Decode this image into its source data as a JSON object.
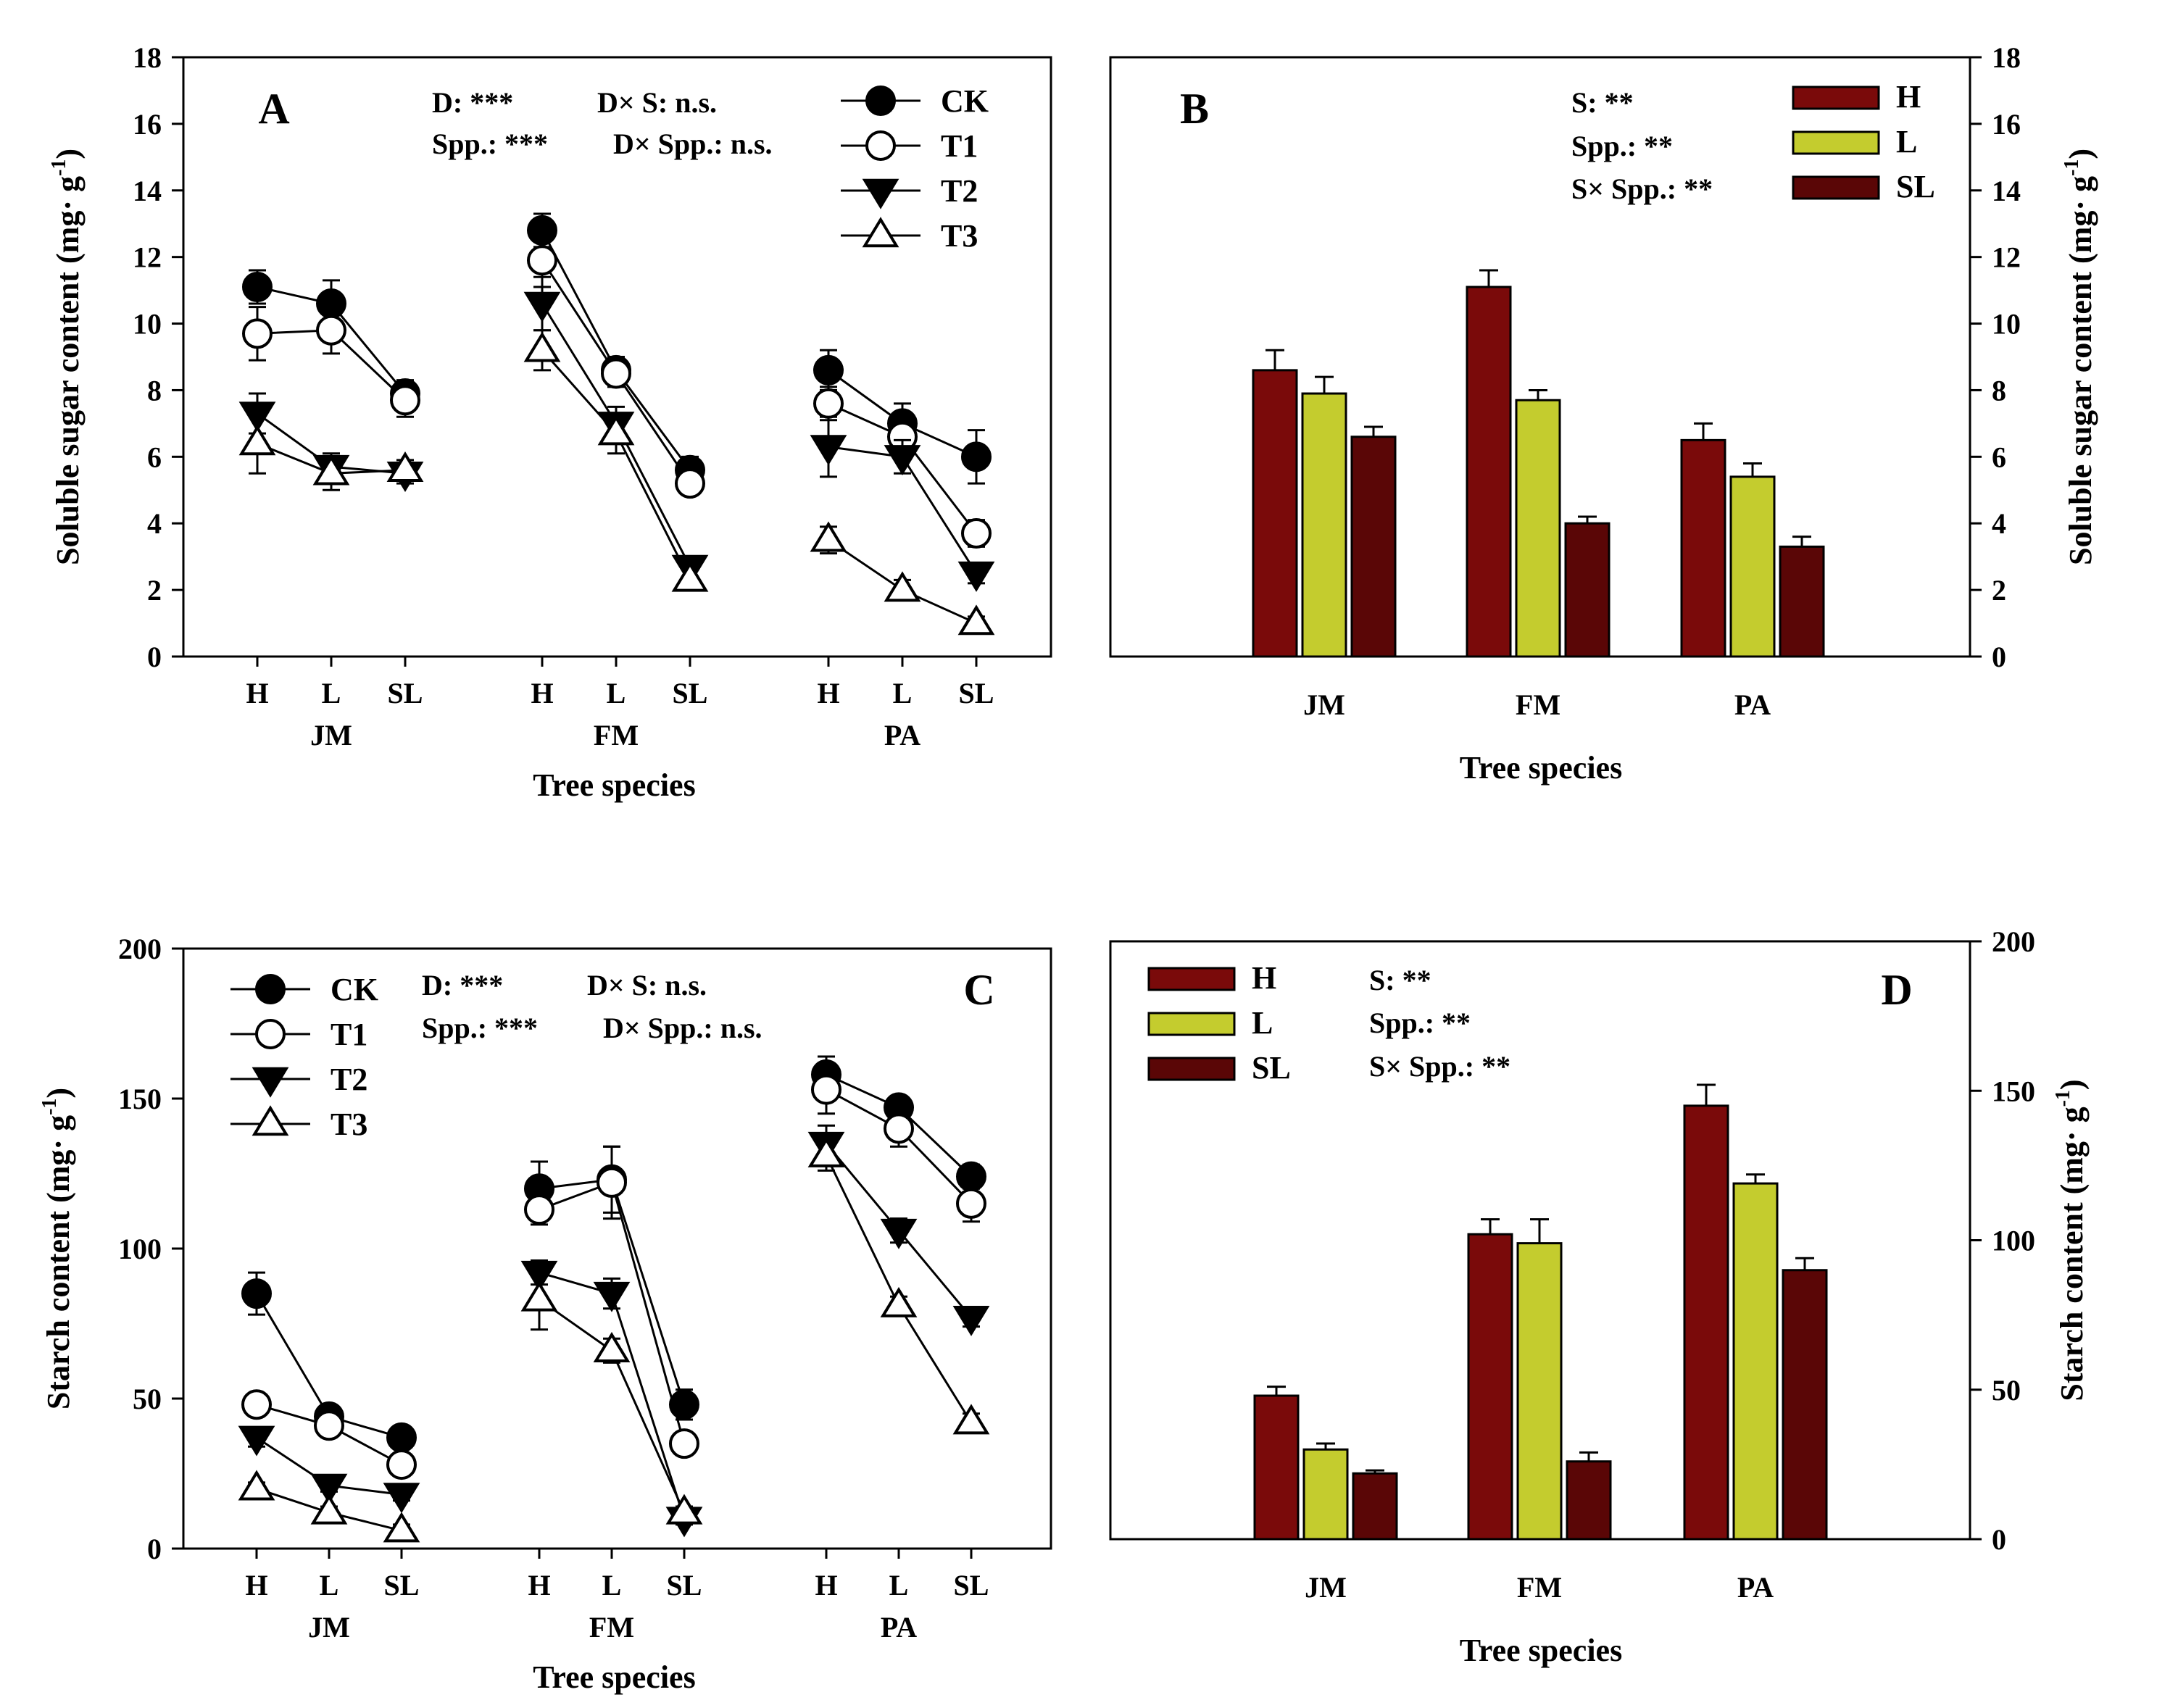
{
  "colors": {
    "H": "#7a0a0a",
    "L": "#c4cc2e",
    "SL": "#5a0606",
    "axis": "#000000"
  },
  "chart_data": [
    {
      "panel": "A",
      "type": "line",
      "ylabel": "Soluble sugar content (mg· g-1)",
      "ylabel_main": "Soluble sugar content (mg· g",
      "ylabel_sup": "-1",
      "ylabel_end": ")",
      "xlabel": "Tree species",
      "ylim": [
        0,
        18
      ],
      "yticks": [
        "0",
        "2",
        "4",
        "6",
        "8",
        "10",
        "12",
        "14",
        "16",
        "18"
      ],
      "groups": [
        "JM",
        "FM",
        "PA"
      ],
      "categories": [
        "H",
        "L",
        "SL"
      ],
      "stats": [
        "D: ***",
        "D× S: n.s.",
        "Spp.: ***",
        "D× Spp.: n.s."
      ],
      "legend": [
        "CK",
        "T1",
        "T2",
        "T3"
      ],
      "series": [
        {
          "name": "CK",
          "marker": "circle-filled",
          "values": [
            [
              11.1,
              10.6,
              7.9
            ],
            [
              12.8,
              8.6,
              5.6
            ],
            [
              8.6,
              7.0,
              6.0
            ]
          ],
          "errors": [
            [
              0.5,
              0.7,
              0.4
            ],
            [
              0.5,
              0.4,
              0.4
            ],
            [
              0.6,
              0.6,
              0.8
            ]
          ]
        },
        {
          "name": "T1",
          "marker": "circle-open",
          "values": [
            [
              9.7,
              9.8,
              7.7
            ],
            [
              11.9,
              8.5,
              5.2
            ],
            [
              7.6,
              6.6,
              3.7
            ]
          ],
          "errors": [
            [
              0.8,
              0.7,
              0.5
            ],
            [
              0.8,
              0.4,
              0.3
            ],
            [
              0.5,
              0.5,
              0.4
            ]
          ]
        },
        {
          "name": "T2",
          "marker": "triangle-down-filled",
          "values": [
            [
              7.3,
              5.7,
              5.5
            ],
            [
              10.6,
              7.0,
              2.7
            ],
            [
              6.3,
              6.0,
              2.5
            ]
          ],
          "errors": [
            [
              0.6,
              0.4,
              0.3
            ],
            [
              0.8,
              0.5,
              0.3
            ],
            [
              0.9,
              0.5,
              0.3
            ]
          ]
        },
        {
          "name": "T3",
          "marker": "triangle-up-open",
          "values": [
            [
              6.4,
              5.5,
              5.6
            ],
            [
              9.2,
              6.7,
              2.3
            ],
            [
              3.5,
              2.0,
              1.0
            ]
          ],
          "errors": [
            [
              0.9,
              0.5,
              0.3
            ],
            [
              0.6,
              0.6,
              0.3
            ],
            [
              0.4,
              0.3,
              0.2
            ]
          ]
        }
      ]
    },
    {
      "panel": "B",
      "type": "bar",
      "ylabel": "Soluble sugar content (mg· g-1)",
      "ylabel_main": "Soluble sugar content (mg· g",
      "ylabel_sup": "-1",
      "ylabel_end": ")",
      "xlabel": "Tree species",
      "ylim": [
        0,
        18
      ],
      "yticks": [
        "0",
        "2",
        "4",
        "6",
        "8",
        "10",
        "12",
        "14",
        "16",
        "18"
      ],
      "categories": [
        "JM",
        "FM",
        "PA"
      ],
      "stats": [
        "S: **",
        "Spp.: **",
        "S× Spp.: **"
      ],
      "legend": [
        "H",
        "L",
        "SL"
      ],
      "series": [
        {
          "name": "H",
          "values": [
            8.6,
            11.1,
            6.5
          ],
          "errors": [
            0.6,
            0.5,
            0.5
          ]
        },
        {
          "name": "L",
          "values": [
            7.9,
            7.7,
            5.4
          ],
          "errors": [
            0.5,
            0.3,
            0.4
          ]
        },
        {
          "name": "SL",
          "values": [
            6.6,
            4.0,
            3.3
          ],
          "errors": [
            0.3,
            0.2,
            0.3
          ]
        }
      ]
    },
    {
      "panel": "C",
      "type": "line",
      "ylabel": "Starch content (mg· g-1)",
      "ylabel_main": "Starch content (mg· g",
      "ylabel_sup": "-1",
      "ylabel_end": ")",
      "xlabel": "Tree species",
      "ylim": [
        0,
        200
      ],
      "yticks": [
        "0",
        "50",
        "100",
        "150",
        "200"
      ],
      "groups": [
        "JM",
        "FM",
        "PA"
      ],
      "categories": [
        "H",
        "L",
        "SL"
      ],
      "stats": [
        "D: ***",
        "D× S: n.s.",
        "Spp.: ***",
        "D× Spp.: n.s."
      ],
      "legend": [
        "CK",
        "T1",
        "T2",
        "T3"
      ],
      "series": [
        {
          "name": "CK",
          "marker": "circle-filled",
          "values": [
            [
              85,
              44,
              37
            ],
            [
              120,
              123,
              48
            ],
            [
              158,
              147,
              124
            ]
          ],
          "errors": [
            [
              7,
              3,
              3
            ],
            [
              9,
              11,
              5
            ],
            [
              6,
              3,
              4
            ]
          ]
        },
        {
          "name": "T1",
          "marker": "circle-open",
          "values": [
            [
              48,
              41,
              28
            ],
            [
              113,
              122,
              35
            ],
            [
              153,
              140,
              115
            ]
          ],
          "errors": [
            [
              3,
              3,
              3
            ],
            [
              5,
              12,
              3
            ],
            [
              8,
              6,
              6
            ]
          ]
        },
        {
          "name": "T2",
          "marker": "triangle-down-filled",
          "values": [
            [
              37,
              21,
              18
            ],
            [
              92,
              85,
              10
            ],
            [
              135,
              106,
              77
            ]
          ],
          "errors": [
            [
              3,
              2,
              2
            ],
            [
              4,
              5,
              2
            ],
            [
              6,
              4,
              3
            ]
          ]
        },
        {
          "name": "T3",
          "marker": "triangle-up-open",
          "values": [
            [
              20,
              12,
              6
            ],
            [
              83,
              66,
              12
            ],
            [
              131,
              81,
              42
            ]
          ],
          "errors": [
            [
              2,
              2,
              2
            ],
            [
              10,
              4,
              2
            ],
            [
              5,
              3,
              3
            ]
          ]
        }
      ]
    },
    {
      "panel": "D",
      "type": "bar",
      "ylabel": "Starch content (mg· g-1)",
      "ylabel_main": "Starch content (mg· g",
      "ylabel_sup": "-1",
      "ylabel_end": ")",
      "xlabel": "Tree species",
      "ylim": [
        0,
        200
      ],
      "yticks": [
        "0",
        "50",
        "100",
        "150",
        "200"
      ],
      "categories": [
        "JM",
        "FM",
        "PA"
      ],
      "stats": [
        "S: **",
        "Spp.: **",
        "S× Spp.: **"
      ],
      "legend": [
        "H",
        "L",
        "SL"
      ],
      "series": [
        {
          "name": "H",
          "values": [
            48,
            102,
            145
          ],
          "errors": [
            3,
            5,
            7
          ]
        },
        {
          "name": "L",
          "values": [
            30,
            99,
            119
          ],
          "errors": [
            2,
            8,
            3
          ]
        },
        {
          "name": "SL",
          "values": [
            22,
            26,
            90
          ],
          "errors": [
            1,
            3,
            4
          ]
        }
      ]
    }
  ]
}
